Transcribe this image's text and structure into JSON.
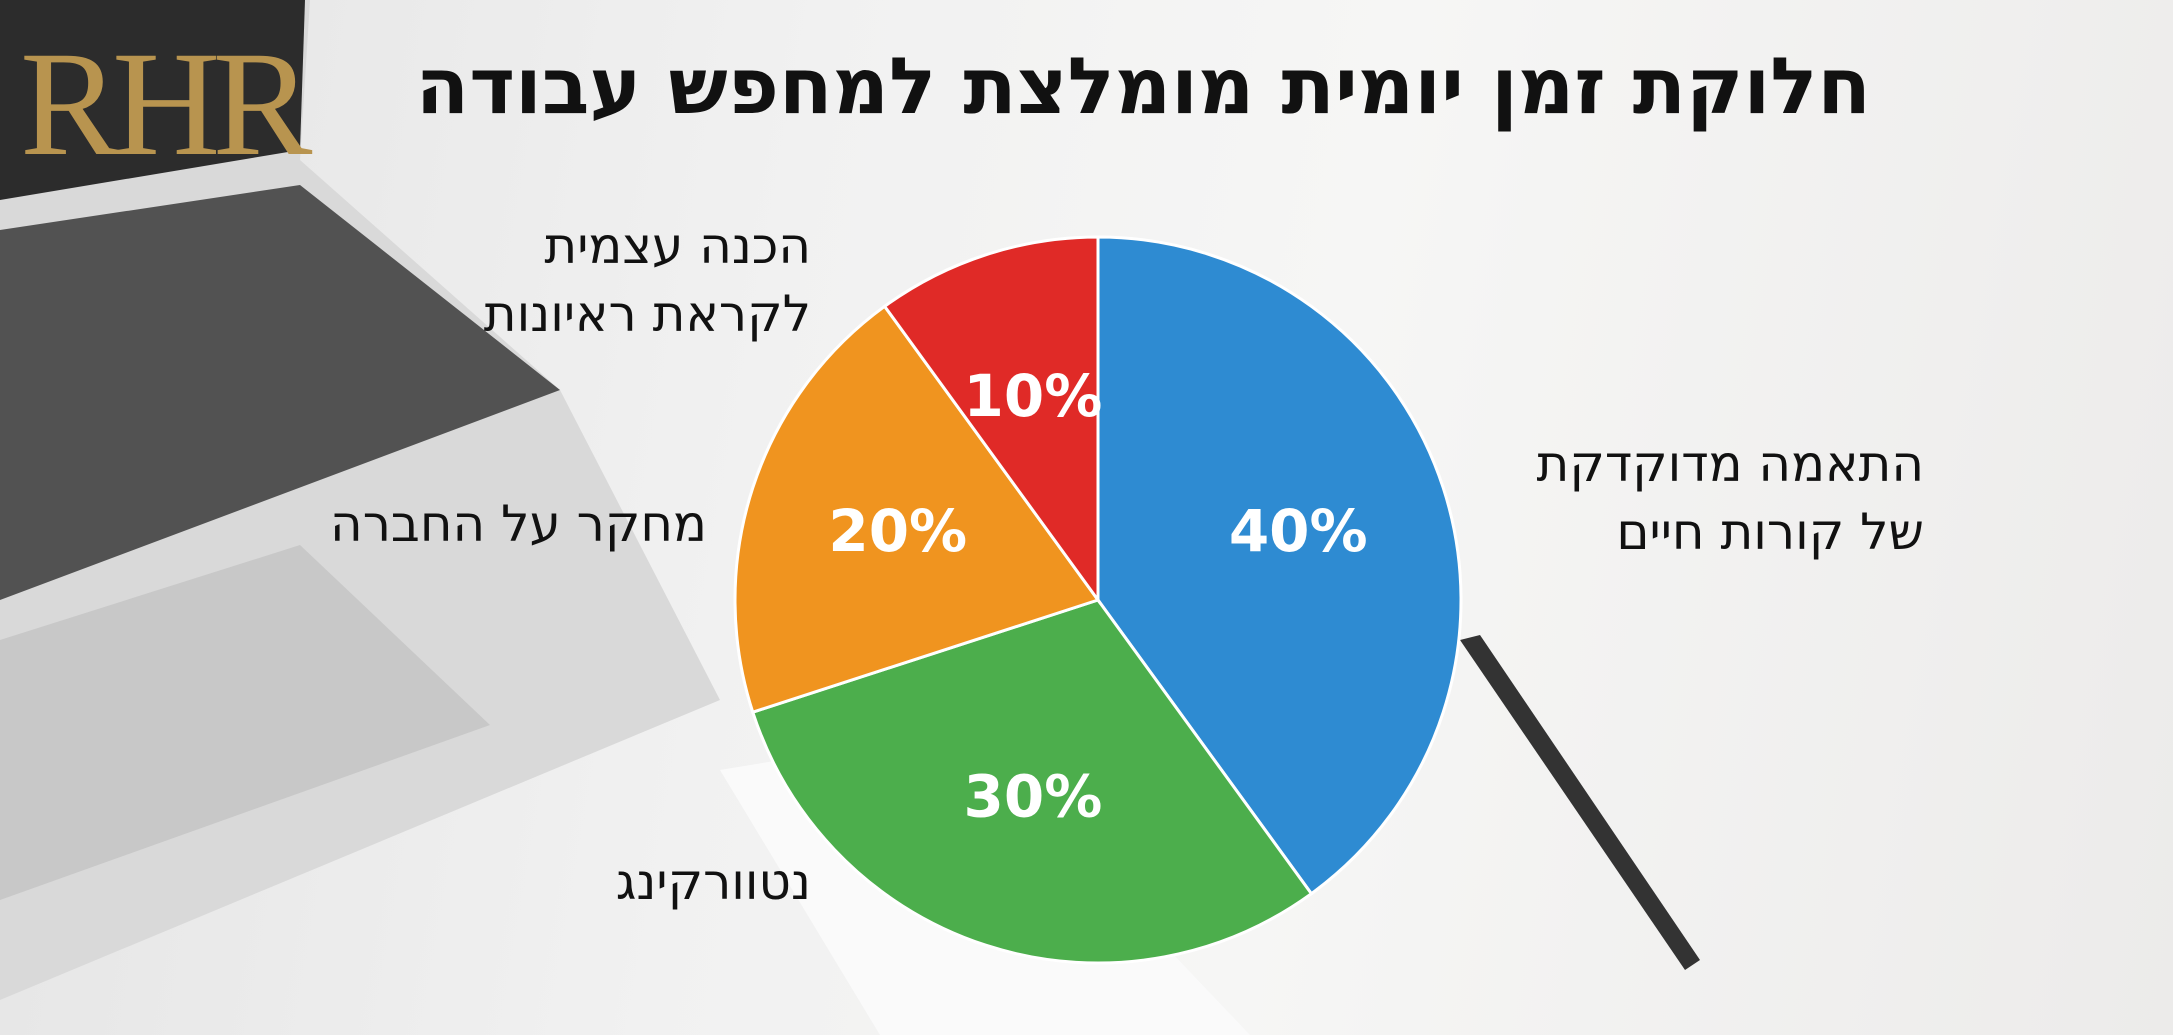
{
  "logo": "RHR",
  "chart_data": {
    "type": "pie",
    "title": "חלוקת זמן יומית מומלצת למחפש עבודה",
    "categories": [
      "התאמה מדוקדקת של קורות חיים",
      "נטוורקינג",
      "מחקר על החברה",
      "הכנה עצמית לקראת ראיונות"
    ],
    "values": [
      40,
      30,
      20,
      10
    ],
    "value_labels": [
      "40%",
      "30%",
      "20%",
      "10%"
    ],
    "colors": [
      "#2e8bd2",
      "#4cae4c",
      "#f0941f",
      "#e02a27"
    ]
  }
}
